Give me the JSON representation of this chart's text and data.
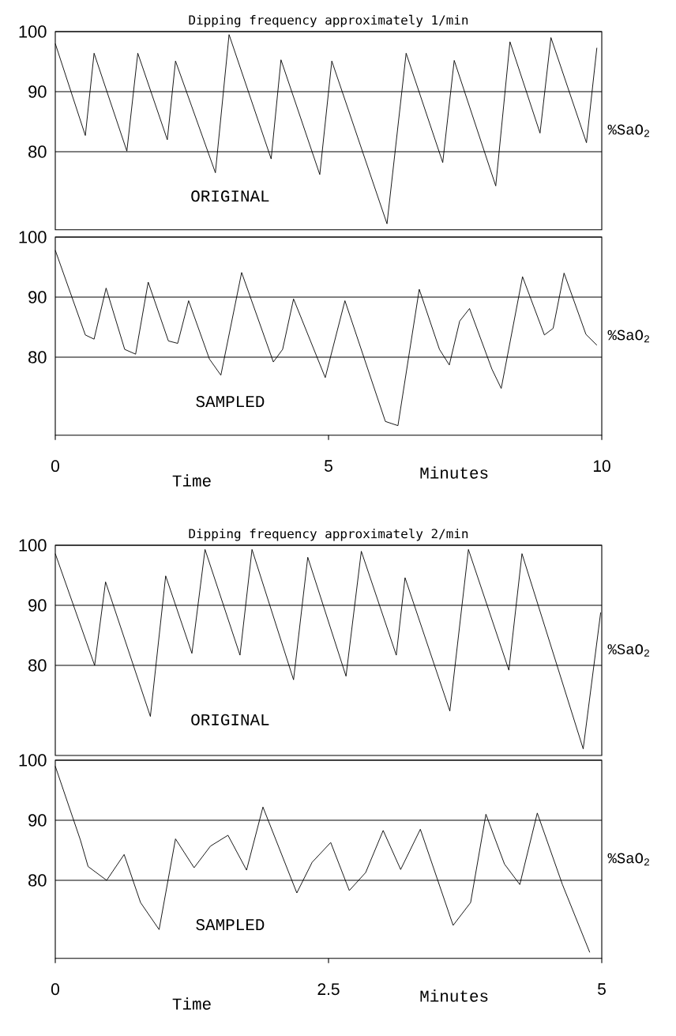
{
  "chart_data": [
    {
      "type": "line",
      "title": "Dipping frequency approximately 1/min",
      "ylabel": "%SaO$_{2}$",
      "annotations": [
        "ORIGINAL"
      ],
      "x": [
        0,
        0.55,
        0.71,
        1.31,
        1.51,
        2.05,
        2.2,
        2.93,
        3.18,
        3.95,
        4.13,
        4.84,
        5.06,
        6.07,
        6.42,
        7.09,
        7.3,
        8.06,
        8.32,
        8.87,
        9.07,
        9.72,
        9.91
      ],
      "values": [
        98.0,
        82.7,
        96.4,
        80.1,
        96.4,
        82.0,
        95.1,
        76.5,
        99.5,
        78.8,
        95.3,
        76.2,
        95.1,
        68.0,
        96.4,
        78.2,
        95.2,
        74.3,
        98.3,
        83.1,
        99.0,
        81.5,
        97.3
      ],
      "xlim": [
        0,
        10
      ],
      "ylim": [
        67,
        100
      ],
      "yticks": [
        80,
        90,
        100
      ],
      "grid": "y",
      "tick_labels": "y"
    },
    {
      "type": "line",
      "xlabel": "Time",
      "ylabel": "%SaO$_{2}$",
      "annotations": [
        "SAMPLED",
        "Minutes"
      ],
      "x": [
        0,
        0.55,
        0.71,
        0.93,
        1.27,
        1.47,
        1.7,
        2.07,
        2.24,
        2.44,
        2.82,
        3.03,
        3.41,
        3.99,
        4.16,
        4.36,
        4.94,
        5.3,
        6.04,
        6.27,
        6.66,
        7.03,
        7.21,
        7.4,
        7.58,
        7.99,
        8.16,
        8.55,
        8.95,
        9.11,
        9.31,
        9.71,
        9.91
      ],
      "values": [
        97.8,
        83.7,
        83.0,
        91.5,
        81.3,
        80.5,
        92.5,
        82.7,
        82.3,
        89.4,
        79.7,
        77.0,
        94.1,
        79.2,
        81.3,
        89.7,
        76.6,
        89.4,
        69.3,
        68.6,
        91.3,
        81.3,
        78.7,
        86.0,
        88.1,
        78.0,
        74.8,
        93.4,
        83.7,
        84.8,
        94.0,
        83.8,
        82.0
      ],
      "xlim": [
        0,
        10
      ],
      "xticks": [
        0,
        5,
        10
      ],
      "ylim": [
        67,
        100
      ],
      "yticks": [
        80,
        90,
        100
      ],
      "grid": "y"
    },
    {
      "type": "line",
      "title": "Dipping frequency approximately 2/min",
      "ylabel": "%SaO$_{2}$",
      "annotations": [
        "ORIGINAL"
      ],
      "x": [
        0,
        0.36,
        0.46,
        0.87,
        1.01,
        1.25,
        1.37,
        1.69,
        1.8,
        2.18,
        2.31,
        2.66,
        2.8,
        3.12,
        3.2,
        3.61,
        3.78,
        4.15,
        4.27,
        4.83,
        4.99
      ],
      "values": [
        98.6,
        80.0,
        93.9,
        71.5,
        94.9,
        82.0,
        99.3,
        81.7,
        99.3,
        77.6,
        98.0,
        78.2,
        99.0,
        81.7,
        94.6,
        72.4,
        99.3,
        79.2,
        98.6,
        66.1,
        88.8
      ],
      "xlim": [
        0,
        5
      ],
      "ylim": [
        65,
        100
      ],
      "yticks": [
        80,
        90,
        100
      ],
      "grid": "y",
      "tick_labels": "y"
    },
    {
      "type": "line",
      "xlabel": "Time",
      "ylabel": "%SaO$_{2}$",
      "annotations": [
        "SAMPLED",
        "Minutes"
      ],
      "x": [
        0,
        0.23,
        0.3,
        0.47,
        0.63,
        0.78,
        0.95,
        1.1,
        1.27,
        1.42,
        1.58,
        1.75,
        1.9,
        2.21,
        2.35,
        2.52,
        2.69,
        2.84,
        3.0,
        3.16,
        3.34,
        3.64,
        3.8,
        3.94,
        4.11,
        4.25,
        4.41,
        4.64,
        4.89
      ],
      "values": [
        99.0,
        86.7,
        82.3,
        80.0,
        84.3,
        76.3,
        71.8,
        86.9,
        82.1,
        85.7,
        87.5,
        81.7,
        92.2,
        77.9,
        83.0,
        86.3,
        78.3,
        81.3,
        88.3,
        81.8,
        88.5,
        72.5,
        76.3,
        91.0,
        82.7,
        79.3,
        91.2,
        79.3,
        68.0
      ],
      "xlim": [
        0,
        5
      ],
      "xticks": [
        0,
        2.5,
        5
      ],
      "ylim": [
        67,
        100
      ],
      "yticks": [
        80,
        90,
        100
      ],
      "grid": "y"
    }
  ]
}
